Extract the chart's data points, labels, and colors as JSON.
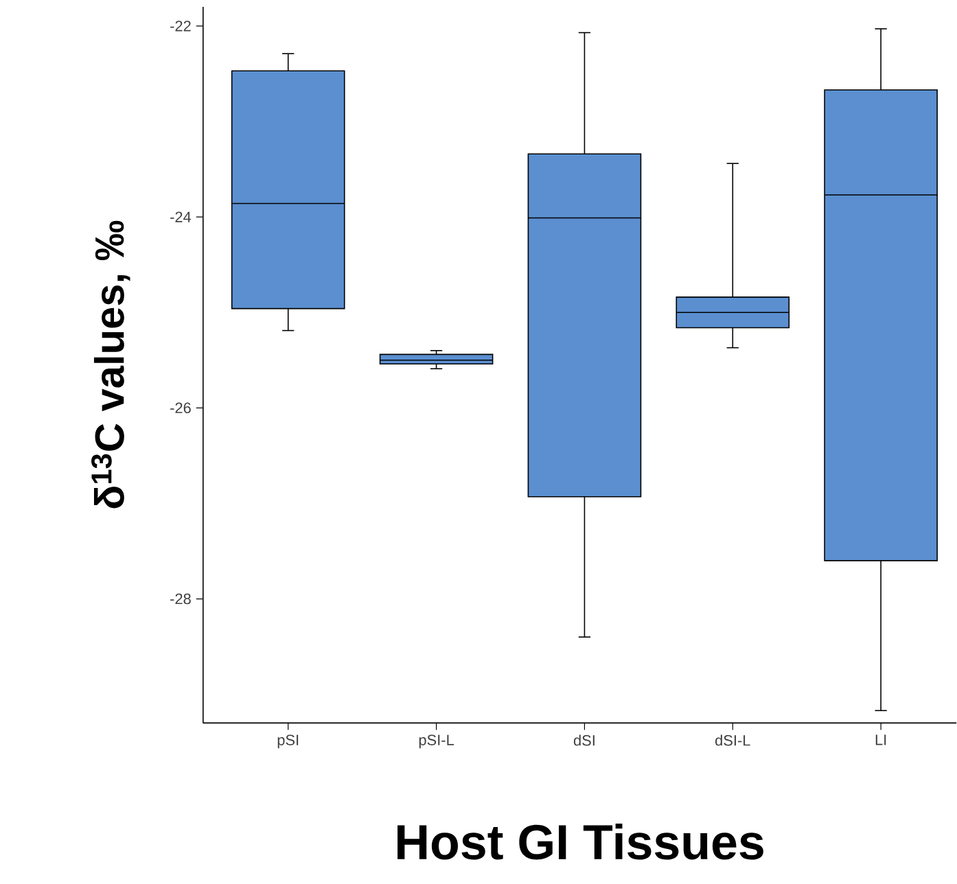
{
  "chart_data": {
    "type": "box",
    "xlabel": "Host GI Tissues",
    "ylabel": "δ$^{13}$C values, ‰",
    "categories": [
      "pSI",
      "pSI-L",
      "dSI",
      "dSI-L",
      "LI"
    ],
    "boxes": [
      {
        "low": -25.19,
        "q1": -24.96,
        "median": -23.86,
        "q3": -22.47,
        "high": -22.29
      },
      {
        "low": -25.59,
        "q1": -25.54,
        "median": -25.5,
        "q3": -25.44,
        "high": -25.4
      },
      {
        "low": -28.4,
        "q1": -26.93,
        "median": -24.01,
        "q3": -23.34,
        "high": -22.07
      },
      {
        "low": -25.37,
        "q1": -25.16,
        "median": -25.0,
        "q3": -24.84,
        "high": -23.44
      },
      {
        "low": -29.17,
        "q1": -27.6,
        "median": -23.77,
        "q3": -22.67,
        "high": -22.03
      }
    ],
    "color": "#5b8fd0",
    "ylim": [
      -29.3,
      -21.8
    ],
    "yticks": [
      -28,
      -26,
      -24,
      -22
    ]
  }
}
